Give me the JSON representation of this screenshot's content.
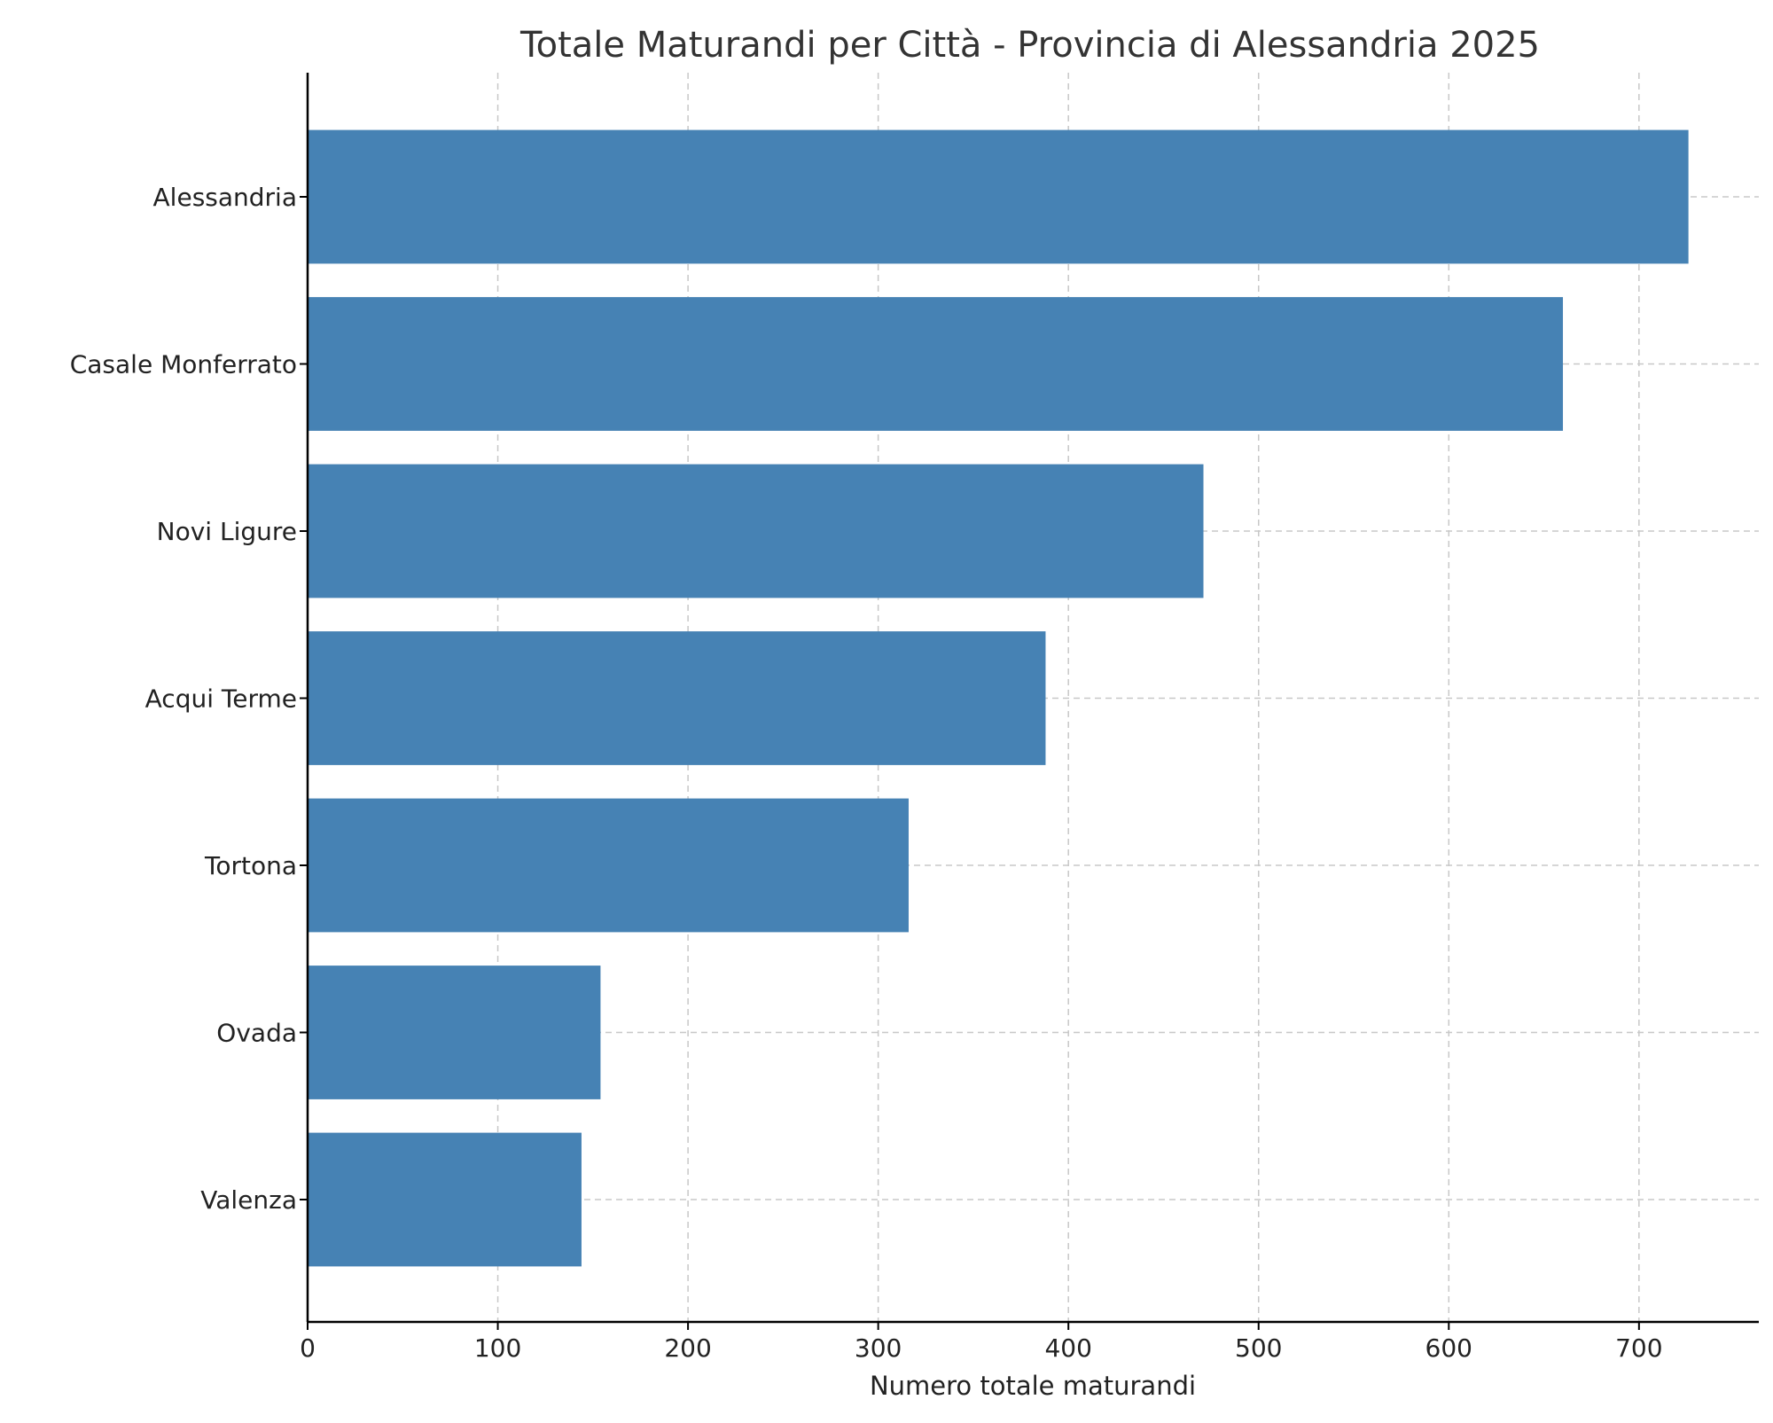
{
  "chart_data": {
    "type": "bar",
    "orientation": "horizontal",
    "title": "Totale Maturandi per Città - Provincia di Alessandria 2025",
    "xlabel": "Numero totale maturandi",
    "ylabel": "",
    "categories": [
      "Alessandria",
      "Casale Monferrato",
      "Novi Ligure",
      "Acqui Terme",
      "Tortona",
      "Ovada",
      "Valenza"
    ],
    "values": [
      726,
      660,
      471,
      388,
      316,
      154,
      144
    ],
    "xlim": [
      0,
      763
    ],
    "xticks": [
      0,
      100,
      200,
      300,
      400,
      500,
      600,
      700
    ],
    "grid": true,
    "bar_color": "#4682b4"
  }
}
